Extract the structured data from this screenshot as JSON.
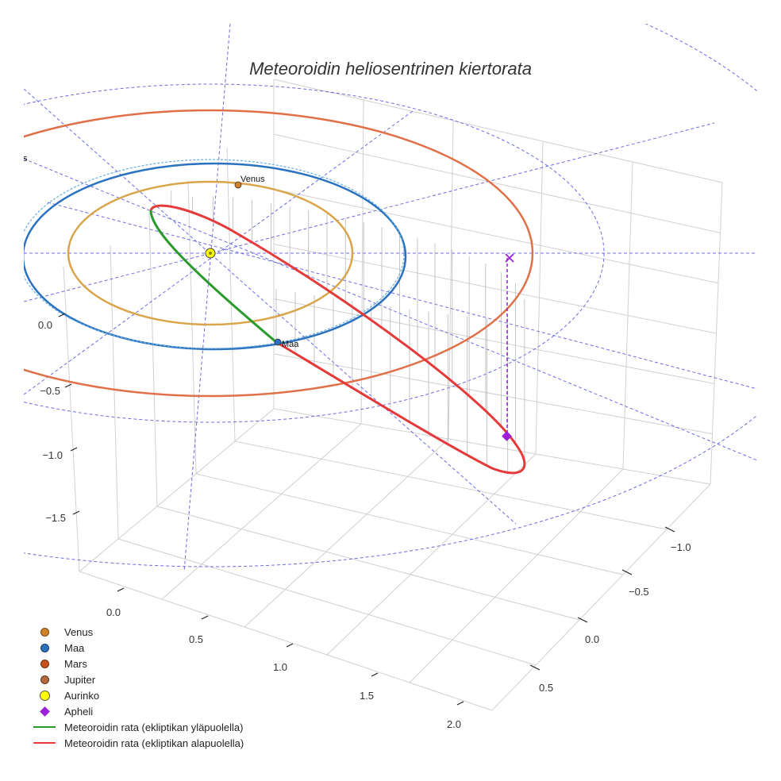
{
  "title": "Meteoroidin heliosentrinen kiertorata",
  "chart_data": {
    "type": "scatter3d",
    "title": "Meteoroidin heliosentrinen kiertorata",
    "axes": {
      "x": {
        "ticks": [
          "0.0",
          "0.5",
          "1.0",
          "1.5",
          "2.0"
        ]
      },
      "y": {
        "ticks": [
          "−1.0",
          "−0.5",
          "0.0",
          "0.5"
        ]
      },
      "z": {
        "ticks": [
          "0.0",
          "−0.5",
          "−1.0",
          "−1.5"
        ]
      }
    },
    "planet_labels": {
      "venus": "Venus",
      "earth": "Maa",
      "mars": "Mars"
    },
    "legend": [
      {
        "label": "Venus",
        "symbol": "dot",
        "color": "#d2832a"
      },
      {
        "label": "Maa",
        "symbol": "dot",
        "color": "#2a72c0"
      },
      {
        "label": "Mars",
        "symbol": "dot",
        "color": "#c8531f"
      },
      {
        "label": "Jupiter",
        "symbol": "dot",
        "color": "#b5683a"
      },
      {
        "label": "Aurinko",
        "symbol": "bigdot",
        "color": "#ffff00"
      },
      {
        "label": "Apheli",
        "symbol": "diamond",
        "color": "#9a1fd6"
      },
      {
        "label": "Meteoroidin rata (ekliptikan yläpuolella)",
        "symbol": "line",
        "color": "#2a9a2a"
      },
      {
        "label": "Meteoroidin rata (ekliptikan alapuolella)",
        "symbol": "line",
        "color": "#e63a3a"
      }
    ],
    "colors": {
      "venus_orbit": "#d9a54a",
      "earth_orbit": "#2a72c0",
      "mars_orbit": "#e07048",
      "orbit_above": "#2a9a2a",
      "orbit_below": "#e63a3a",
      "grid_guide": "#5555dd",
      "aphelion": "#9a1fd6"
    }
  }
}
